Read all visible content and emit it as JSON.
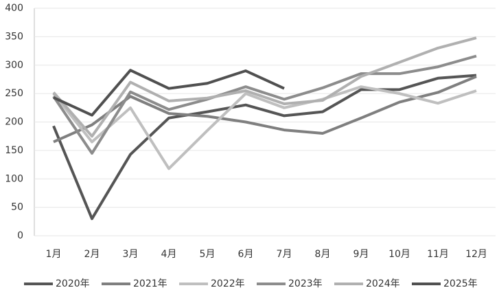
{
  "chart_data": {
    "type": "line",
    "categories": [
      "1月",
      "2月",
      "3月",
      "4月",
      "5月",
      "6月",
      "7月",
      "8月",
      "9月",
      "10月",
      "11月",
      "12月"
    ],
    "series": [
      {
        "name": "2020年",
        "color": "#555555",
        "values": [
          193,
          30,
          143,
          207,
          218,
          230,
          211,
          218,
          257,
          257,
          277,
          282
        ]
      },
      {
        "name": "2021年",
        "color": "#7f7f7f",
        "values": [
          165,
          195,
          245,
          215,
          210,
          200,
          186,
          180,
          207,
          235,
          252,
          280
        ]
      },
      {
        "name": "2022年",
        "color": "#bfbfbf",
        "values": [
          250,
          165,
          225,
          118,
          185,
          250,
          225,
          240,
          262,
          250,
          233,
          255
        ]
      },
      {
        "name": "2023年",
        "color": "#8c8c8c",
        "values": [
          245,
          145,
          253,
          222,
          240,
          262,
          240,
          260,
          285,
          285,
          297,
          316
        ]
      },
      {
        "name": "2024年",
        "color": "#b0b0b0",
        "values": [
          252,
          175,
          270,
          237,
          242,
          255,
          232,
          238,
          280,
          305,
          330,
          348
        ]
      },
      {
        "name": "2025年",
        "color": "#505050",
        "values": [
          243,
          212,
          291,
          259,
          268,
          290,
          259,
          null,
          null,
          null,
          null,
          null
        ]
      }
    ],
    "ylim": [
      0,
      400
    ],
    "yticks": [
      0,
      50,
      100,
      150,
      200,
      250,
      300,
      350,
      400
    ],
    "grid": true,
    "legend": "bottom"
  }
}
